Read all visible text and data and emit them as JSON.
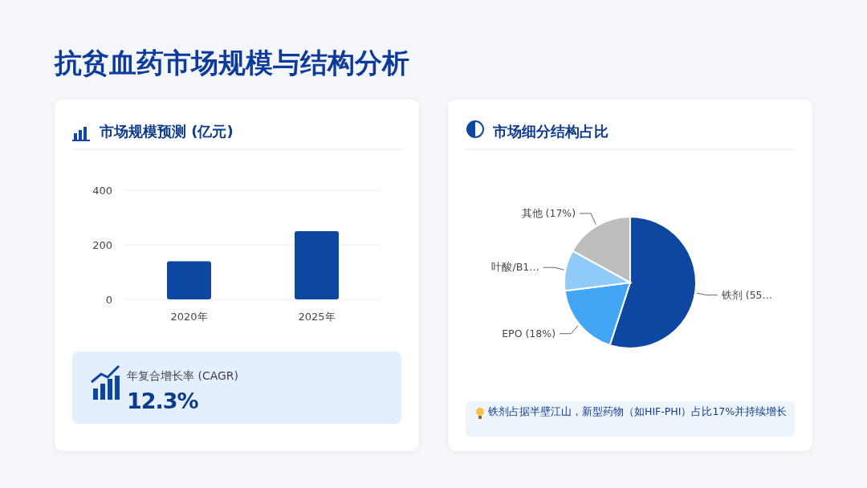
{
  "chart_data": [
    {
      "type": "other",
      "title": "抗贫血药市场规模与结构分析"
    },
    {
      "type": "bar",
      "title": "市场规模预测 (亿元)",
      "categories": [
        "2020年",
        "2025年"
      ],
      "values": [
        140,
        250
      ],
      "color": "#0d47a1",
      "ylim": [
        0,
        400
      ],
      "yticks": [
        0,
        200,
        400
      ],
      "grid": "y",
      "annotations": [
        "年复合增长率 (CAGR)",
        "12.3%"
      ]
    },
    {
      "type": "pie",
      "title": "市场细分结构占比",
      "categories": [
        "铁剂 (55…",
        "EPO (18%)",
        "叶酸/B1…",
        "其他 (17%)"
      ],
      "values": [
        55,
        18,
        10,
        17
      ],
      "colors": [
        "#0d47a1",
        "#42a5f5",
        "#90caf9",
        "#bdbdbd"
      ],
      "annotations": [
        "铁剂占据半壁江山，新型药物（如HIF-PHI）占比17%并持续增长"
      ]
    }
  ]
}
